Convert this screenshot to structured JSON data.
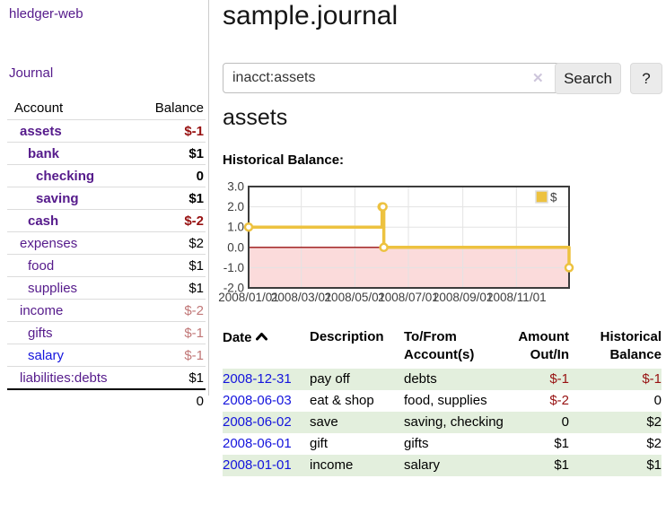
{
  "sidebar": {
    "brand": "hledger-web",
    "journal_link": "Journal",
    "accounts_table": {
      "headers": {
        "account": "Account",
        "balance": "Balance"
      },
      "rows": [
        {
          "account": "assets",
          "balance": "$-1",
          "indent": 1,
          "bold": true,
          "link": "purple",
          "negative": "strong"
        },
        {
          "account": "bank",
          "balance": "$1",
          "indent": 2,
          "bold": true,
          "link": "purple"
        },
        {
          "account": "checking",
          "balance": "0",
          "indent": 3,
          "bold": true,
          "link": "purple"
        },
        {
          "account": "saving",
          "balance": "$1",
          "indent": 3,
          "bold": true,
          "link": "purple"
        },
        {
          "account": "cash",
          "balance": "$-2",
          "indent": 2,
          "bold": true,
          "link": "purple",
          "negative": "strong"
        },
        {
          "account": "expenses",
          "balance": "$2",
          "indent": 1,
          "bold": false,
          "link": "purple"
        },
        {
          "account": "food",
          "balance": "$1",
          "indent": 2,
          "bold": false,
          "link": "purple"
        },
        {
          "account": "supplies",
          "balance": "$1",
          "indent": 2,
          "bold": false,
          "link": "purple"
        },
        {
          "account": "income",
          "balance": "$-2",
          "indent": 1,
          "bold": false,
          "link": "purple",
          "negative": "soft"
        },
        {
          "account": "gifts",
          "balance": "$-1",
          "indent": 2,
          "bold": false,
          "link": "purple",
          "negative": "soft"
        },
        {
          "account": "salary",
          "balance": "$-1",
          "indent": 2,
          "bold": false,
          "link": "blue",
          "negative": "soft"
        },
        {
          "account": "liabilities:debts",
          "balance": "$1",
          "indent": 1,
          "bold": false,
          "link": "purple"
        }
      ],
      "total": "0"
    }
  },
  "header": {
    "title": "sample.journal"
  },
  "search": {
    "value": "inacct:assets",
    "clear_icon": "✕",
    "search_button": "Search",
    "help_button": "?"
  },
  "account_page": {
    "heading": "assets",
    "chart_label": "Historical Balance:"
  },
  "chart_data": {
    "type": "line",
    "title": "Historical Balance:",
    "step": true,
    "series": [
      {
        "name": "$",
        "color": "#edc240",
        "points": [
          {
            "date": "2008-01-01",
            "value": 1
          },
          {
            "date": "2008-06-01",
            "value": 2
          },
          {
            "date": "2008-06-02",
            "value": 2
          },
          {
            "date": "2008-06-03",
            "value": 0
          },
          {
            "date": "2008-12-31",
            "value": -1
          }
        ]
      }
    ],
    "x_range": [
      "2008-01-01",
      "2008-12-31"
    ],
    "x_ticks": [
      "2008/01/01",
      "2008/03/01",
      "2008/05/01",
      "2008/07/01",
      "2008/09/01",
      "2008/11/01"
    ],
    "y_ticks": [
      "3.0",
      "2.0",
      "1.0",
      "0.0",
      "-1.0",
      "-2.0"
    ],
    "ylim": [
      -2,
      3
    ],
    "grid": true,
    "negative_region_color": "#fbdbdb",
    "zero_line_color": "#991111",
    "legend": {
      "label": "$",
      "position": "top-right"
    }
  },
  "register_table": {
    "headers": {
      "date": "Date",
      "description": "Description",
      "accounts": "To/From Account(s)",
      "amount": "Amount Out/In",
      "balance": "Historical Balance"
    },
    "rows": [
      {
        "date": "2008-12-31",
        "description": "pay off",
        "accounts": "debts",
        "amount": "$-1",
        "balance": "$-1",
        "amount_negative": true,
        "balance_negative": true,
        "shaded": true
      },
      {
        "date": "2008-06-03",
        "description": "eat & shop",
        "accounts": "food, supplies",
        "amount": "$-2",
        "balance": "0",
        "amount_negative": true,
        "balance_negative": false,
        "shaded": false
      },
      {
        "date": "2008-06-02",
        "description": "save",
        "accounts": "saving, checking",
        "amount": "0",
        "balance": "$2",
        "amount_negative": false,
        "balance_negative": false,
        "shaded": true
      },
      {
        "date": "2008-06-01",
        "description": "gift",
        "accounts": "gifts",
        "amount": "$1",
        "balance": "$2",
        "amount_negative": false,
        "balance_negative": false,
        "shaded": false
      },
      {
        "date": "2008-01-01",
        "description": "income",
        "accounts": "salary",
        "amount": "$1",
        "balance": "$1",
        "amount_negative": false,
        "balance_negative": false,
        "shaded": true
      }
    ]
  }
}
